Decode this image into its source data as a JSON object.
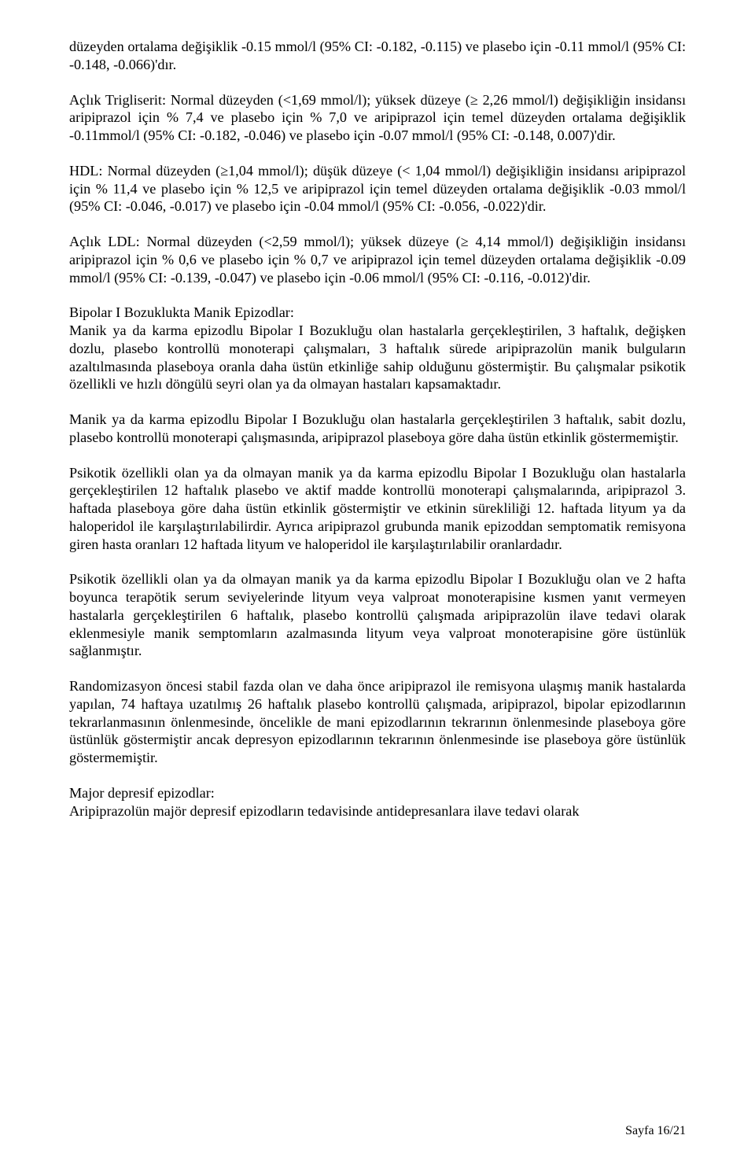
{
  "paragraphs": {
    "p1": "düzeyden ortalama değişiklik -0.15 mmol/l (95% CI: -0.182, -0.115) ve  plasebo için -0.11 mmol/l (95% CI: -0.148, -0.066)'dır.",
    "p2": "Açlık Trigliserit: Normal düzeyden (<1,69 mmol/l); yüksek düzeye (≥ 2,26 mmol/l) değişikliğin insidansı aripiprazol için  % 7,4 ve plasebo için % 7,0 ve aripiprazol için  temel düzeyden ortalama değişiklik -0.11mmol/l (95% CI: -0.182, -0.046) ve  plasebo için -0.07 mmol/l (95% CI: -0.148, 0.007)'dir.",
    "p3": "HDL: Normal düzeyden (≥1,04 mmol/l); düşük düzeye (< 1,04 mmol/l) değişikliğin insidansı aripiprazol için  % 11,4 ve plasebo için % 12,5 ve aripiprazol için  temel düzeyden ortalama değişiklik -0.03 mmol/l (95% CI: -0.046, -0.017) ve  plasebo için -0.04 mmol/l (95% CI: -0.056, -0.022)'dir.",
    "p4": "Açlık LDL: Normal düzeyden (<2,59 mmol/l); yüksek düzeye (≥ 4,14 mmol/l) değişikliğin insidansı aripiprazol için  % 0,6 ve plasebo için % 0,7 ve aripiprazol için  temel düzeyden ortalama değişiklik -0.09 mmol/l (95% CI: -0.139, -0.047) ve  plasebo için -0.06 mmol/l (95% CI: -0.116, -0.012)'dir.",
    "p5a": "Bipolar I Bozuklukta Manik Epizodlar:",
    "p5b": "Manik ya da karma epizodlu Bipolar I Bozukluğu olan hastalarla gerçekleştirilen, 3 haftalık, değişken dozlu, plasebo kontrollü monoterapi çalışmaları, 3 haftalık sürede aripiprazolün manik bulguların azaltılmasında plaseboya oranla daha üstün etkinliğe sahip olduğunu göstermiştir. Bu çalışmalar psikotik özellikli ve hızlı döngülü seyri olan ya da olmayan hastaları kapsamaktadır.",
    "p6": "Manik ya da karma epizodlu Bipolar I Bozukluğu olan hastalarla gerçekleştirilen 3 haftalık, sabit dozlu, plasebo kontrollü monoterapi çalışmasında, aripiprazol  plaseboya göre daha üstün etkinlik göstermemiştir.",
    "p7": "Psikotik özellikli olan ya da olmayan manik ya da karma epizodlu Bipolar I Bozukluğu olan hastalarla gerçekleştirilen 12 haftalık plasebo ve aktif madde kontrollü monoterapi çalışmalarında, aripiprazol 3. haftada plaseboya göre daha üstün etkinlik göstermiştir ve etkinin sürekliliği 12. haftada  lityum ya da haloperidol ile karşılaştırılabilirdir. Ayrıca aripiprazol grubunda manik epizoddan semptomatik remisyona giren hasta oranları 12 haftada lityum ve haloperidol ile karşılaştırılabilir oranlardadır.",
    "p8": "Psikotik özellikli olan ya da olmayan manik ya da karma epizodlu Bipolar I Bozukluğu olan ve  2 hafta boyunca terapötik serum seviyelerinde lityum veya valproat monoterapisine kısmen yanıt vermeyen hastalarla gerçekleştirilen 6 haftalık, plasebo kontrollü çalışmada aripiprazolün ilave tedavi olarak eklenmesiyle manik semptomların azalmasında lityum veya valproat monoterapisine göre üstünlük sağlanmıştır.",
    "p9": "Randomizasyon öncesi stabil fazda olan ve daha önce aripiprazol ile remisyona ulaşmış manik hastalarda yapılan, 74 haftaya uzatılmış 26 haftalık plasebo kontrollü çalışmada, aripiprazol, bipolar epizodlarının tekrarlanmasının önlenmesinde, öncelikle de mani epizodlarının tekrarının önlenmesinde plaseboya göre üstünlük göstermiştir ancak depresyon epizodlarının tekrarının önlenmesinde ise plaseboya göre üstünlük göstermemiştir.",
    "p10a": "Major depresif epizodlar:",
    "p10b": "Aripiprazolün majör depresif epizodların tedavisinde antidepresanlara ilave tedavi olarak"
  },
  "footer": "Sayfa 16/21"
}
